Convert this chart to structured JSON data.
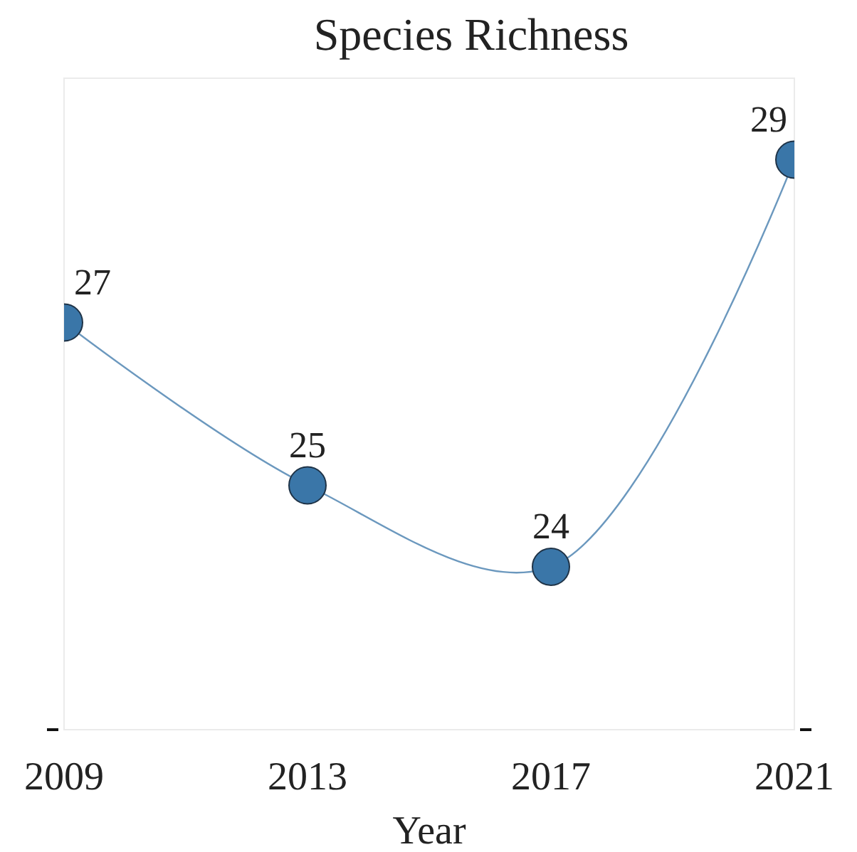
{
  "chart_data": {
    "type": "line",
    "title": "Species Richness",
    "xlabel": "Year",
    "x": [
      2009,
      2013,
      2017,
      2021
    ],
    "series": [
      {
        "color": "#3a76a8",
        "values": [
          27,
          25,
          24,
          29
        ]
      }
    ],
    "xlim": [
      2009,
      2021
    ],
    "xticks": [
      2009,
      2013,
      2017,
      2021
    ],
    "ylim": [
      22,
      30
    ],
    "yticks": [
      {
        "value": 22,
        "label": null
      }
    ],
    "tick_labels": "x",
    "data_labels": true,
    "marker": "circle",
    "line_style": "solid",
    "grid": false
  }
}
